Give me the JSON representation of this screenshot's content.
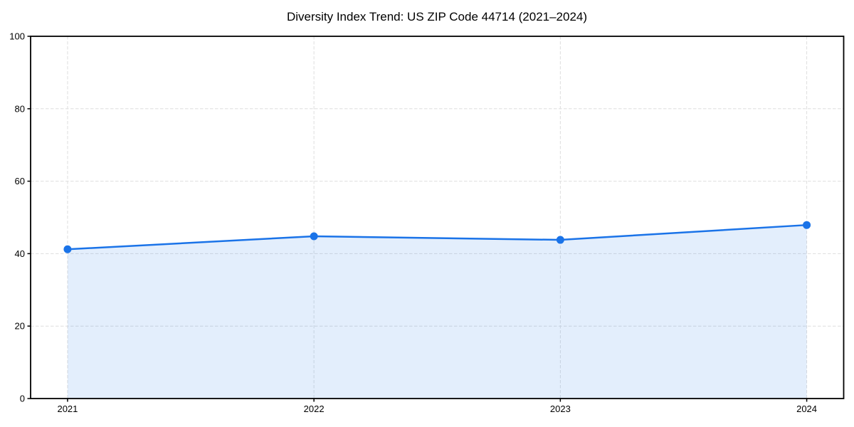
{
  "figure": {
    "background_color": "#ffffff"
  },
  "chart_data": {
    "type": "area",
    "title": "Diversity Index Trend: US ZIP Code 44714 (2021–2024)",
    "x": [
      2021,
      2022,
      2023,
      2024
    ],
    "values": [
      41.2,
      44.8,
      43.8,
      47.9
    ],
    "series_name": "Diversity Index",
    "xlabel": "",
    "ylabel": "",
    "xlim": [
      2020.85,
      2024.15
    ],
    "ylim": [
      0,
      100
    ],
    "xticks": [
      2021,
      2022,
      2023,
      2024
    ],
    "yticks": [
      0,
      20,
      40,
      60,
      80,
      100
    ],
    "grid": true,
    "legend": false,
    "line_color": "#1a73e8",
    "marker_color": "#1a73e8",
    "fill_color": "rgba(26,115,232,0.12)",
    "grid_color": "#dedede",
    "spine_color": "#000000",
    "tick_color": "#000000",
    "text_color": "#000000"
  }
}
